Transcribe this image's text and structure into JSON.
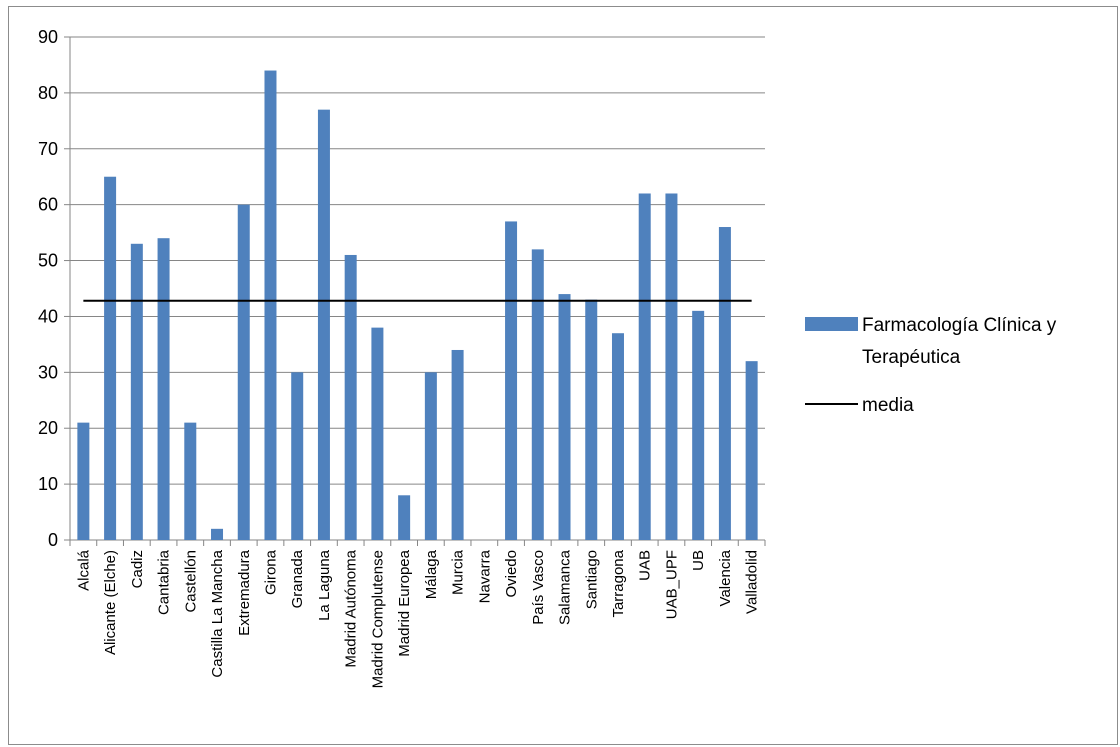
{
  "chart_data": {
    "type": "bar",
    "categories": [
      "Alcalá",
      "Alicante (Elche)",
      "Cadiz",
      "Cantabria",
      "Castellón",
      "Castilla La Mancha",
      "Extremadura",
      "Girona",
      "Granada",
      "La Laguna",
      "Madrid Autónoma",
      "Madrid Complutense",
      "Madrid Europea",
      "Málaga",
      "Murcia",
      "Navarra",
      "Oviedo",
      "País Vasco",
      "Salamanca",
      "Santiago",
      "Tarragona",
      "UAB",
      "UAB_UPF",
      "UB",
      "Valencia",
      "Valladolid"
    ],
    "series": [
      {
        "name": "Farmacología Clínica y Terapéutica",
        "type": "bar",
        "color": "#4f81bd",
        "values": [
          21,
          65,
          53,
          54,
          21,
          2,
          60,
          84,
          30,
          77,
          51,
          38,
          8,
          30,
          34,
          0,
          57,
          52,
          44,
          43,
          37,
          62,
          62,
          41,
          56,
          32
        ]
      },
      {
        "name": "media",
        "type": "line",
        "color": "#000000",
        "value": 42.8
      }
    ],
    "legend_lines": [
      "Farmacología Clínica y",
      "Terapéutica"
    ],
    "yticks": [
      "0",
      "10",
      "20",
      "30",
      "40",
      "50",
      "60",
      "70",
      "80",
      "90"
    ],
    "ylim": [
      0,
      90
    ],
    "grid": true,
    "legend_position": "right"
  }
}
